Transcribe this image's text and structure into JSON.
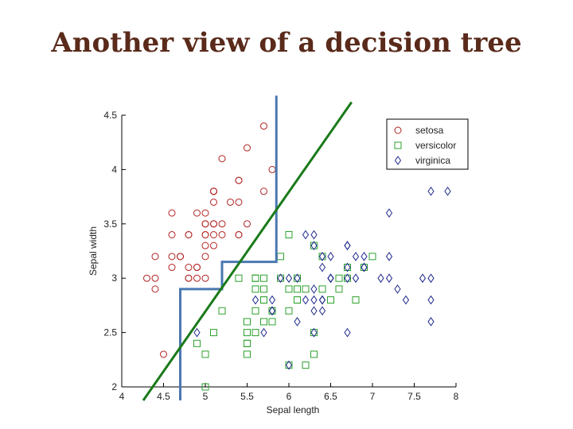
{
  "slide": {
    "title": "Another view of a decision tree"
  },
  "chart_data": {
    "type": "scatter",
    "title": "",
    "xlabel": "Sepal length",
    "ylabel": "Sepal width",
    "xlim": [
      4,
      8
    ],
    "ylim": [
      2,
      4.5
    ],
    "xticks": [
      "4",
      "4.5",
      "5",
      "5.5",
      "6",
      "6.5",
      "7",
      "7.5",
      "8"
    ],
    "yticks": [
      "2",
      "2.5",
      "3",
      "3.5",
      "4",
      "4.5"
    ],
    "legend_position": "top-right",
    "series": [
      {
        "name": "setosa",
        "marker": "circle",
        "color": "#b22222",
        "points": [
          [
            5.1,
            3.5
          ],
          [
            4.9,
            3.0
          ],
          [
            4.7,
            3.2
          ],
          [
            4.6,
            3.1
          ],
          [
            5.0,
            3.6
          ],
          [
            5.4,
            3.9
          ],
          [
            4.6,
            3.4
          ],
          [
            5.0,
            3.4
          ],
          [
            4.4,
            2.9
          ],
          [
            4.9,
            3.1
          ],
          [
            5.4,
            3.7
          ],
          [
            4.8,
            3.4
          ],
          [
            4.8,
            3.0
          ],
          [
            4.3,
            3.0
          ],
          [
            5.8,
            4.0
          ],
          [
            5.7,
            4.4
          ],
          [
            5.4,
            3.9
          ],
          [
            5.1,
            3.5
          ],
          [
            5.7,
            3.8
          ],
          [
            5.1,
            3.8
          ],
          [
            5.4,
            3.4
          ],
          [
            5.1,
            3.7
          ],
          [
            4.6,
            3.6
          ],
          [
            5.1,
            3.3
          ],
          [
            4.8,
            3.4
          ],
          [
            5.0,
            3.0
          ],
          [
            5.0,
            3.4
          ],
          [
            5.2,
            3.5
          ],
          [
            5.2,
            3.4
          ],
          [
            4.7,
            3.2
          ],
          [
            4.8,
            3.1
          ],
          [
            5.4,
            3.4
          ],
          [
            5.2,
            4.1
          ],
          [
            5.5,
            4.2
          ],
          [
            4.9,
            3.1
          ],
          [
            5.0,
            3.2
          ],
          [
            5.5,
            3.5
          ],
          [
            4.9,
            3.6
          ],
          [
            4.4,
            3.0
          ],
          [
            5.1,
            3.4
          ],
          [
            5.0,
            3.5
          ],
          [
            4.5,
            2.3
          ],
          [
            4.4,
            3.2
          ],
          [
            5.0,
            3.5
          ],
          [
            5.1,
            3.8
          ],
          [
            4.8,
            3.0
          ],
          [
            5.1,
            3.8
          ],
          [
            4.6,
            3.2
          ],
          [
            5.3,
            3.7
          ],
          [
            5.0,
            3.3
          ]
        ]
      },
      {
        "name": "versicolor",
        "marker": "square",
        "color": "#2ca02c",
        "points": [
          [
            7.0,
            3.2
          ],
          [
            6.4,
            3.2
          ],
          [
            6.9,
            3.1
          ],
          [
            5.5,
            2.3
          ],
          [
            6.5,
            2.8
          ],
          [
            5.7,
            2.8
          ],
          [
            6.3,
            3.3
          ],
          [
            4.9,
            2.4
          ],
          [
            6.6,
            2.9
          ],
          [
            5.2,
            2.7
          ],
          [
            5.0,
            2.0
          ],
          [
            5.9,
            3.0
          ],
          [
            6.0,
            2.2
          ],
          [
            6.1,
            2.9
          ],
          [
            5.6,
            2.9
          ],
          [
            6.7,
            3.1
          ],
          [
            5.6,
            3.0
          ],
          [
            5.8,
            2.7
          ],
          [
            6.2,
            2.2
          ],
          [
            5.6,
            2.5
          ],
          [
            5.9,
            3.2
          ],
          [
            6.1,
            2.8
          ],
          [
            6.3,
            2.5
          ],
          [
            6.1,
            2.8
          ],
          [
            6.4,
            2.9
          ],
          [
            6.6,
            3.0
          ],
          [
            6.8,
            2.8
          ],
          [
            6.7,
            3.0
          ],
          [
            6.0,
            2.9
          ],
          [
            5.7,
            2.6
          ],
          [
            5.5,
            2.4
          ],
          [
            5.5,
            2.4
          ],
          [
            5.8,
            2.7
          ],
          [
            6.0,
            2.7
          ],
          [
            5.4,
            3.0
          ],
          [
            6.0,
            3.4
          ],
          [
            6.7,
            3.1
          ],
          [
            6.3,
            2.3
          ],
          [
            5.6,
            3.0
          ],
          [
            5.5,
            2.5
          ],
          [
            5.5,
            2.6
          ],
          [
            6.1,
            3.0
          ],
          [
            5.8,
            2.6
          ],
          [
            5.0,
            2.3
          ],
          [
            5.6,
            2.7
          ],
          [
            5.7,
            3.0
          ],
          [
            5.7,
            2.9
          ],
          [
            6.2,
            2.9
          ],
          [
            5.1,
            2.5
          ],
          [
            5.7,
            2.8
          ]
        ]
      },
      {
        "name": "virginica",
        "marker": "diamond",
        "color": "#1f2a8c",
        "points": [
          [
            6.3,
            3.3
          ],
          [
            5.8,
            2.7
          ],
          [
            7.1,
            3.0
          ],
          [
            6.3,
            2.9
          ],
          [
            6.5,
            3.0
          ],
          [
            7.6,
            3.0
          ],
          [
            4.9,
            2.5
          ],
          [
            7.3,
            2.9
          ],
          [
            6.7,
            2.5
          ],
          [
            7.2,
            3.6
          ],
          [
            6.5,
            3.2
          ],
          [
            6.4,
            2.7
          ],
          [
            6.8,
            3.0
          ],
          [
            5.7,
            2.5
          ],
          [
            5.8,
            2.8
          ],
          [
            6.4,
            3.2
          ],
          [
            6.5,
            3.0
          ],
          [
            7.7,
            3.8
          ],
          [
            7.7,
            2.6
          ],
          [
            6.0,
            2.2
          ],
          [
            6.9,
            3.2
          ],
          [
            5.6,
            2.8
          ],
          [
            7.7,
            2.8
          ],
          [
            6.3,
            2.7
          ],
          [
            6.7,
            3.3
          ],
          [
            7.2,
            3.2
          ],
          [
            6.2,
            2.8
          ],
          [
            6.1,
            3.0
          ],
          [
            6.4,
            2.8
          ],
          [
            7.2,
            3.0
          ],
          [
            7.4,
            2.8
          ],
          [
            7.9,
            3.8
          ],
          [
            6.4,
            2.8
          ],
          [
            6.3,
            2.8
          ],
          [
            6.1,
            2.6
          ],
          [
            7.7,
            3.0
          ],
          [
            6.3,
            3.4
          ],
          [
            6.4,
            3.1
          ],
          [
            6.0,
            3.0
          ],
          [
            6.9,
            3.1
          ],
          [
            6.7,
            3.1
          ],
          [
            6.9,
            3.1
          ],
          [
            5.8,
            2.7
          ],
          [
            6.8,
            3.2
          ],
          [
            6.7,
            3.3
          ],
          [
            6.7,
            3.0
          ],
          [
            6.3,
            2.5
          ],
          [
            6.5,
            3.0
          ],
          [
            6.2,
            3.4
          ],
          [
            5.9,
            3.0
          ]
        ]
      }
    ],
    "decision_boundary": {
      "color": "#4a78b0",
      "points": [
        [
          4.7,
          2.0
        ],
        [
          4.7,
          2.9
        ],
        [
          5.2,
          2.9
        ],
        [
          5.2,
          3.15
        ],
        [
          5.85,
          3.15
        ],
        [
          5.85,
          4.68
        ]
      ]
    },
    "linear_boundary": {
      "color": "#1a7a1a",
      "points": [
        [
          4.37,
          2.0
        ],
        [
          6.75,
          4.62
        ]
      ]
    }
  }
}
